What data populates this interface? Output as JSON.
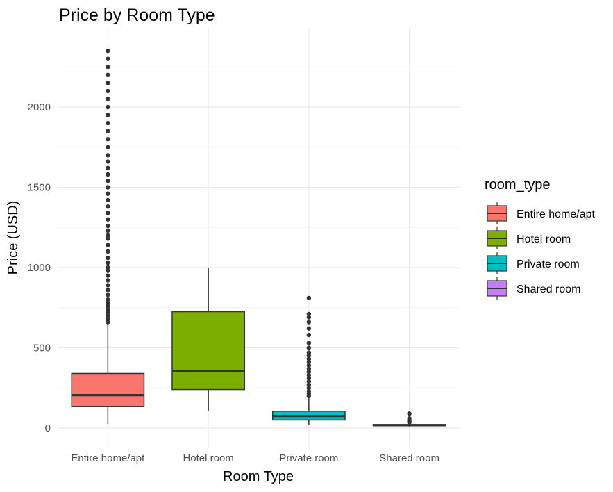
{
  "chart_data": {
    "type": "boxplot",
    "title": "Price by Room Type",
    "xlabel": "Room Type",
    "ylabel": "Price (USD)",
    "ylim": [
      -60,
      2400
    ],
    "yticks": [
      0,
      500,
      1000,
      1500,
      2000
    ],
    "grid": true,
    "legend": {
      "title": "room_type",
      "placement": "right"
    },
    "categories": [
      "Entire home/apt",
      "Hotel room",
      "Private room",
      "Shared room"
    ],
    "series": [
      {
        "name": "Entire home/apt",
        "color": "#F8766D",
        "whisker_low": 25,
        "q1": 135,
        "median": 205,
        "q3": 340,
        "whisker_high": 650,
        "outliers": [
          660,
          680,
          700,
          720,
          740,
          760,
          780,
          800,
          830,
          860,
          890,
          920,
          950,
          980,
          1000,
          1030,
          1060,
          1100,
          1140,
          1180,
          1200,
          1230,
          1260,
          1300,
          1340,
          1380,
          1420,
          1460,
          1500,
          1540,
          1580,
          1620,
          1660,
          1700,
          1750,
          1800,
          1850,
          1900,
          1950,
          2000,
          2050,
          2100,
          2150,
          2200,
          2250,
          2300,
          2350
        ]
      },
      {
        "name": "Hotel room",
        "color": "#7CAE00",
        "whisker_low": 105,
        "q1": 240,
        "median": 355,
        "q3": 725,
        "whisker_high": 1000,
        "outliers": []
      },
      {
        "name": "Private room",
        "color": "#00BFC4",
        "whisker_low": 20,
        "q1": 50,
        "median": 75,
        "q3": 105,
        "whisker_high": 190,
        "outliers": [
          200,
          215,
          230,
          250,
          270,
          290,
          310,
          330,
          350,
          370,
          390,
          410,
          430,
          450,
          470,
          500,
          530,
          580,
          620,
          660,
          690,
          710,
          810
        ]
      },
      {
        "name": "Shared room",
        "color": "#C77CFF",
        "whisker_low": 10,
        "q1": 15,
        "median": 18,
        "q3": 22,
        "whisker_high": 28,
        "outliers": [
          35,
          45,
          60,
          90
        ]
      }
    ]
  }
}
